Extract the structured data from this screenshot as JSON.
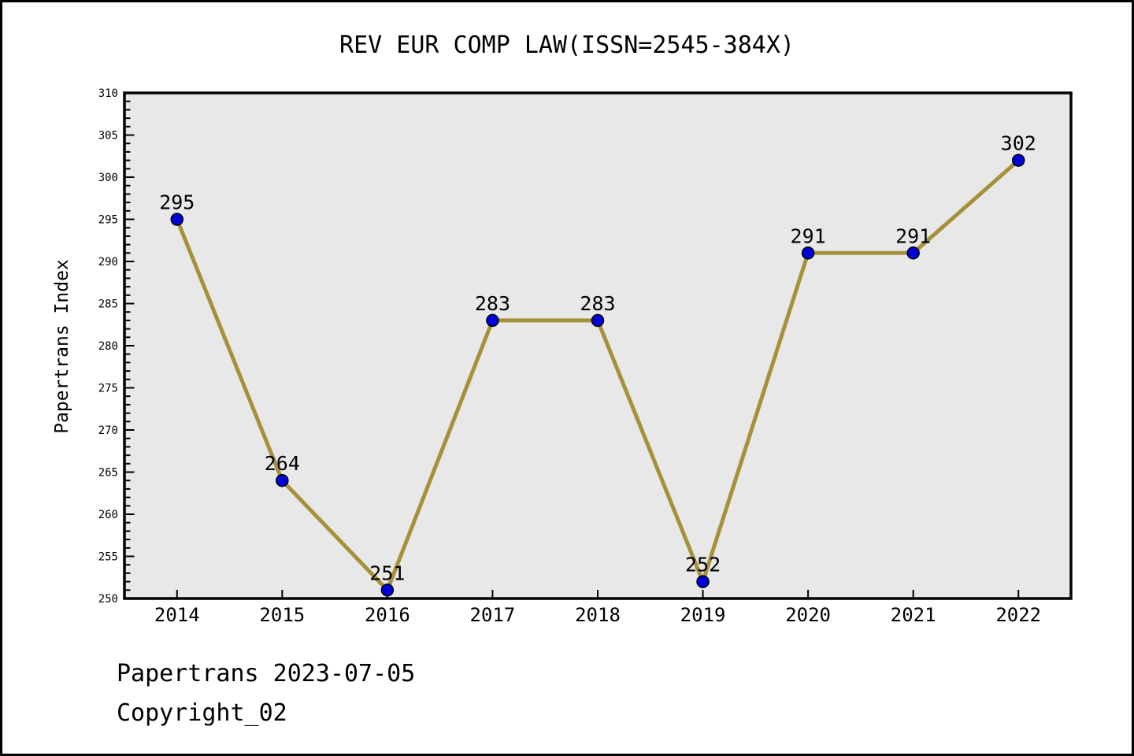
{
  "footer": {
    "line1": "Papertrans 2023-07-05",
    "line2": "Copyright_02"
  },
  "chart_data": {
    "type": "line",
    "title": "REV EUR COMP LAW(ISSN=2545-384X)",
    "xlabel": "",
    "ylabel": "Papertrans Index",
    "categories": [
      "2014",
      "2015",
      "2016",
      "2017",
      "2018",
      "2019",
      "2020",
      "2021",
      "2022"
    ],
    "values": [
      295,
      264,
      251,
      283,
      283,
      252,
      291,
      291,
      302
    ],
    "point_labels": [
      "295",
      "264",
      "251",
      "283",
      "283",
      "252",
      "291",
      "291",
      "302"
    ],
    "ylim": [
      250,
      310
    ],
    "y_major_ticks": [
      250,
      255,
      260,
      265,
      270,
      275,
      280,
      285,
      290,
      295,
      300,
      305,
      310
    ],
    "y_minor_step": 1,
    "grid": false,
    "legend_position": "none",
    "colors": {
      "line": "#a5913a",
      "marker": "#0000dd",
      "marker_edge": "#000000",
      "plot_bg": "#e8e8e8",
      "figure_bg": "#ffffff",
      "axis": "#000000"
    }
  }
}
